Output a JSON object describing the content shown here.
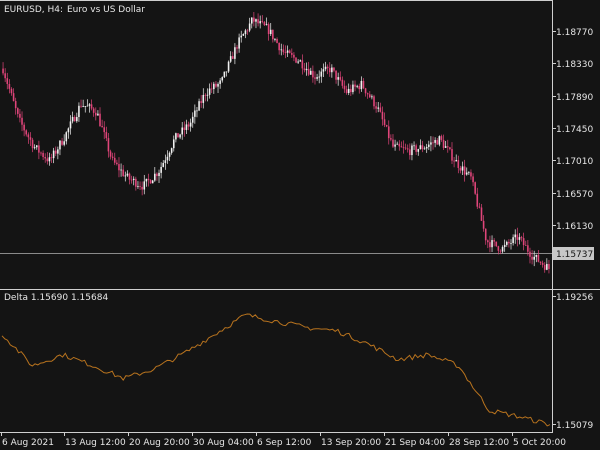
{
  "header": {
    "symbol_label": "EURUSD, H4:",
    "description": "Euro vs US Dollar"
  },
  "price_panel": {
    "y_ticks": [
      "1.18770",
      "1.18330",
      "1.17890",
      "1.17450",
      "1.17010",
      "1.16570",
      "1.16130"
    ],
    "current_price": "1.15737"
  },
  "indicator_panel": {
    "title": "Delta 1.15690 1.15684",
    "y_ticks": [
      "1.19256",
      "1.15079"
    ]
  },
  "x_ticks": [
    "6 Aug 2021",
    "13 Aug 12:00",
    "20 Aug 20:00",
    "30 Aug 04:00",
    "6 Sep 12:00",
    "13 Sep 20:00",
    "21 Sep 04:00",
    "28 Sep 12:00",
    "5 Oct 20:00"
  ],
  "colors": {
    "background": "#141414",
    "bull_candle": "#f0f0f0",
    "bear_candle": "#e0457a",
    "indicator_line": "#b8731e",
    "grid_line": "#cfcfcf",
    "price_line": "#8a8a8a"
  },
  "chart_data": {
    "type": "line",
    "title": "EURUSD, H4: Euro vs US Dollar",
    "x_range": [
      "6 Aug 2021",
      "5 Oct 20:00"
    ],
    "price_ylim": [
      1.155,
      1.1915
    ],
    "price_path": [
      [
        "6 Aug 2021",
        1.183
      ],
      [
        "8 Aug",
        1.1765
      ],
      [
        "10 Aug",
        1.173
      ],
      [
        "11 Aug",
        1.1712
      ],
      [
        "12 Aug",
        1.1745
      ],
      [
        "13 Aug 12:00",
        1.1785
      ],
      [
        "15 Aug",
        1.1775
      ],
      [
        "17 Aug",
        1.1712
      ],
      [
        "18 Aug",
        1.169
      ],
      [
        "20 Aug",
        1.168
      ],
      [
        "20 Aug 20:00",
        1.17
      ],
      [
        "23 Aug",
        1.174
      ],
      [
        "25 Aug",
        1.176
      ],
      [
        "27 Aug",
        1.18
      ],
      [
        "29 Aug",
        1.1812
      ],
      [
        "30 Aug 04:00",
        1.186
      ],
      [
        "31 Aug",
        1.1892
      ],
      [
        "2 Sep",
        1.188
      ],
      [
        "4 Sep",
        1.185
      ],
      [
        "6 Sep 12:00",
        1.184
      ],
      [
        "8 Sep",
        1.182
      ],
      [
        "10 Sep",
        1.183
      ],
      [
        "12 Sep",
        1.18
      ],
      [
        "13 Sep 20:00",
        1.181
      ],
      [
        "15 Sep",
        1.178
      ],
      [
        "17 Sep",
        1.173
      ],
      [
        "19 Sep",
        1.1725
      ],
      [
        "21 Sep 04:00",
        1.173
      ],
      [
        "23 Sep",
        1.174
      ],
      [
        "25 Sep",
        1.1712
      ],
      [
        "27 Sep",
        1.169
      ],
      [
        "28 Sep 12:00",
        1.161
      ],
      [
        "30 Sep",
        1.16
      ],
      [
        "2 Oct",
        1.1615
      ],
      [
        "4 Oct",
        1.159
      ],
      [
        "5 Oct 20:00",
        1.1575
      ]
    ],
    "indicator_ylim": [
      1.1495,
      1.1935
    ],
    "indicator_path": [
      [
        "6 Aug 2021",
        1.18
      ],
      [
        "10 Aug",
        1.17
      ],
      [
        "13 Aug 12:00",
        1.1735
      ],
      [
        "17 Aug",
        1.17
      ],
      [
        "20 Aug",
        1.166
      ],
      [
        "20 Aug 20:00",
        1.169
      ],
      [
        "25 Aug",
        1.174
      ],
      [
        "30 Aug 04:00",
        1.18
      ],
      [
        "31 Aug",
        1.186
      ],
      [
        "4 Sep",
        1.184
      ],
      [
        "6 Sep 12:00",
        1.182
      ],
      [
        "10 Sep",
        1.181
      ],
      [
        "13 Sep 20:00",
        1.177
      ],
      [
        "17 Sep",
        1.172
      ],
      [
        "21 Sep 04:00",
        1.1735
      ],
      [
        "25 Sep",
        1.17
      ],
      [
        "28 Sep 12:00",
        1.156
      ],
      [
        "2 Oct",
        1.154
      ],
      [
        "5 Oct 20:00",
        1.1515
      ]
    ]
  }
}
